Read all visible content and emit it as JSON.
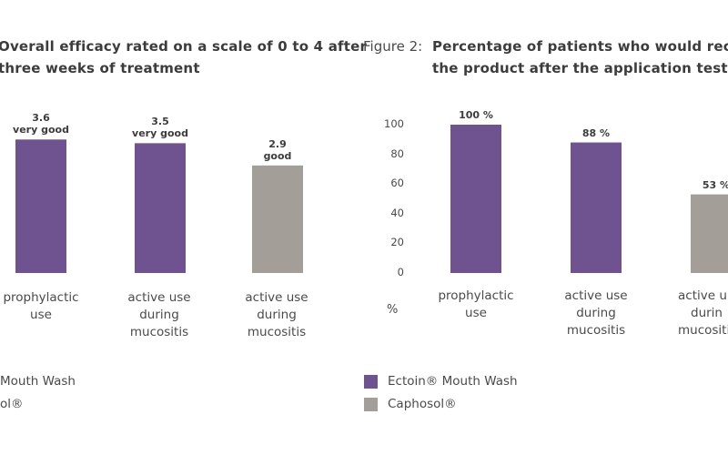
{
  "colors": {
    "ectoin": "#6f5390",
    "caphosol": "#a39e98"
  },
  "chart_data": [
    {
      "type": "bar",
      "title_lines": [
        "Overall efficacy rated on a scale of 0 to 4 after",
        "three weeks of treatment"
      ],
      "categories": [
        [
          "prophylactic",
          "use"
        ],
        [
          "active use",
          "during",
          "mucositis"
        ],
        [
          "active use",
          "during",
          "mucositis"
        ]
      ],
      "values": [
        3.6,
        3.5,
        2.9
      ],
      "value_labels": [
        [
          "3.6",
          "very good"
        ],
        [
          "3.5",
          "very good"
        ],
        [
          "2.9",
          "good"
        ]
      ],
      "series_of_bar": [
        "ectoin",
        "ectoin",
        "caphosol"
      ],
      "ylim": [
        0,
        4
      ],
      "legend": [
        {
          "key": "ectoin",
          "label": "Mouth Wash"
        },
        {
          "key": "caphosol",
          "label": "ol®"
        }
      ]
    },
    {
      "type": "bar",
      "figure_label": "Figure 2:",
      "title_lines": [
        "Percentage of patients who would reco",
        "the product after the application test"
      ],
      "categories": [
        [
          "prophylactic",
          "use"
        ],
        [
          "active use",
          "during",
          "mucositis"
        ],
        [
          "active u",
          "durin",
          "mucositi"
        ]
      ],
      "values": [
        100,
        88,
        53
      ],
      "value_labels": [
        [
          "100 %"
        ],
        [
          "88 %"
        ],
        [
          "53 %"
        ]
      ],
      "series_of_bar": [
        "ectoin",
        "ectoin",
        "caphosol"
      ],
      "ylim": [
        0,
        100
      ],
      "yticks": [
        "0",
        "20",
        "40",
        "60",
        "80",
        "100"
      ],
      "ylabel": "%",
      "legend": [
        {
          "key": "ectoin",
          "label": "Ectoin® Mouth Wash"
        },
        {
          "key": "caphosol",
          "label": "Caphosol®"
        }
      ]
    }
  ]
}
